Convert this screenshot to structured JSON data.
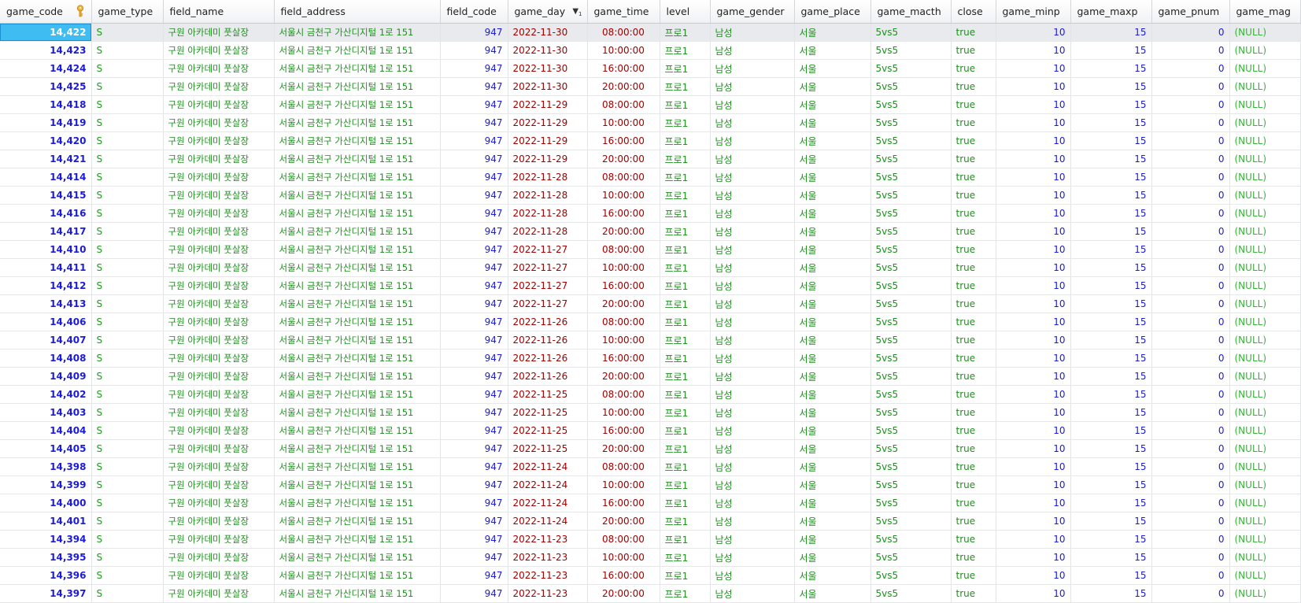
{
  "columns": [
    "game_code",
    "game_type",
    "field_name",
    "field_address",
    "field_code",
    "game_day",
    "game_time",
    "level",
    "game_gender",
    "game_place",
    "game_macth",
    "close",
    "game_minp",
    "game_maxp",
    "game_pnum",
    "game_mag"
  ],
  "sort_indicator": "1",
  "rows": [
    [
      "14,422",
      "S",
      "구원 아카데미 풋살장",
      "서울시 금천구 가산디지털 1로 151",
      "947",
      "2022-11-30",
      "08:00:00",
      "프로1",
      "남성",
      "서울",
      "5vs5",
      "true",
      "10",
      "15",
      "0",
      "(NULL)"
    ],
    [
      "14,423",
      "S",
      "구원 아카데미 풋살장",
      "서울시 금천구 가산디지털 1로 151",
      "947",
      "2022-11-30",
      "10:00:00",
      "프로1",
      "남성",
      "서울",
      "5vs5",
      "true",
      "10",
      "15",
      "0",
      "(NULL)"
    ],
    [
      "14,424",
      "S",
      "구원 아카데미 풋살장",
      "서울시 금천구 가산디지털 1로 151",
      "947",
      "2022-11-30",
      "16:00:00",
      "프로1",
      "남성",
      "서울",
      "5vs5",
      "true",
      "10",
      "15",
      "0",
      "(NULL)"
    ],
    [
      "14,425",
      "S",
      "구원 아카데미 풋살장",
      "서울시 금천구 가산디지털 1로 151",
      "947",
      "2022-11-30",
      "20:00:00",
      "프로1",
      "남성",
      "서울",
      "5vs5",
      "true",
      "10",
      "15",
      "0",
      "(NULL)"
    ],
    [
      "14,418",
      "S",
      "구원 아카데미 풋살장",
      "서울시 금천구 가산디지털 1로 151",
      "947",
      "2022-11-29",
      "08:00:00",
      "프로1",
      "남성",
      "서울",
      "5vs5",
      "true",
      "10",
      "15",
      "0",
      "(NULL)"
    ],
    [
      "14,419",
      "S",
      "구원 아카데미 풋살장",
      "서울시 금천구 가산디지털 1로 151",
      "947",
      "2022-11-29",
      "10:00:00",
      "프로1",
      "남성",
      "서울",
      "5vs5",
      "true",
      "10",
      "15",
      "0",
      "(NULL)"
    ],
    [
      "14,420",
      "S",
      "구원 아카데미 풋살장",
      "서울시 금천구 가산디지털 1로 151",
      "947",
      "2022-11-29",
      "16:00:00",
      "프로1",
      "남성",
      "서울",
      "5vs5",
      "true",
      "10",
      "15",
      "0",
      "(NULL)"
    ],
    [
      "14,421",
      "S",
      "구원 아카데미 풋살장",
      "서울시 금천구 가산디지털 1로 151",
      "947",
      "2022-11-29",
      "20:00:00",
      "프로1",
      "남성",
      "서울",
      "5vs5",
      "true",
      "10",
      "15",
      "0",
      "(NULL)"
    ],
    [
      "14,414",
      "S",
      "구원 아카데미 풋살장",
      "서울시 금천구 가산디지털 1로 151",
      "947",
      "2022-11-28",
      "08:00:00",
      "프로1",
      "남성",
      "서울",
      "5vs5",
      "true",
      "10",
      "15",
      "0",
      "(NULL)"
    ],
    [
      "14,415",
      "S",
      "구원 아카데미 풋살장",
      "서울시 금천구 가산디지털 1로 151",
      "947",
      "2022-11-28",
      "10:00:00",
      "프로1",
      "남성",
      "서울",
      "5vs5",
      "true",
      "10",
      "15",
      "0",
      "(NULL)"
    ],
    [
      "14,416",
      "S",
      "구원 아카데미 풋살장",
      "서울시 금천구 가산디지털 1로 151",
      "947",
      "2022-11-28",
      "16:00:00",
      "프로1",
      "남성",
      "서울",
      "5vs5",
      "true",
      "10",
      "15",
      "0",
      "(NULL)"
    ],
    [
      "14,417",
      "S",
      "구원 아카데미 풋살장",
      "서울시 금천구 가산디지털 1로 151",
      "947",
      "2022-11-28",
      "20:00:00",
      "프로1",
      "남성",
      "서울",
      "5vs5",
      "true",
      "10",
      "15",
      "0",
      "(NULL)"
    ],
    [
      "14,410",
      "S",
      "구원 아카데미 풋살장",
      "서울시 금천구 가산디지털 1로 151",
      "947",
      "2022-11-27",
      "08:00:00",
      "프로1",
      "남성",
      "서울",
      "5vs5",
      "true",
      "10",
      "15",
      "0",
      "(NULL)"
    ],
    [
      "14,411",
      "S",
      "구원 아카데미 풋살장",
      "서울시 금천구 가산디지털 1로 151",
      "947",
      "2022-11-27",
      "10:00:00",
      "프로1",
      "남성",
      "서울",
      "5vs5",
      "true",
      "10",
      "15",
      "0",
      "(NULL)"
    ],
    [
      "14,412",
      "S",
      "구원 아카데미 풋살장",
      "서울시 금천구 가산디지털 1로 151",
      "947",
      "2022-11-27",
      "16:00:00",
      "프로1",
      "남성",
      "서울",
      "5vs5",
      "true",
      "10",
      "15",
      "0",
      "(NULL)"
    ],
    [
      "14,413",
      "S",
      "구원 아카데미 풋살장",
      "서울시 금천구 가산디지털 1로 151",
      "947",
      "2022-11-27",
      "20:00:00",
      "프로1",
      "남성",
      "서울",
      "5vs5",
      "true",
      "10",
      "15",
      "0",
      "(NULL)"
    ],
    [
      "14,406",
      "S",
      "구원 아카데미 풋살장",
      "서울시 금천구 가산디지털 1로 151",
      "947",
      "2022-11-26",
      "08:00:00",
      "프로1",
      "남성",
      "서울",
      "5vs5",
      "true",
      "10",
      "15",
      "0",
      "(NULL)"
    ],
    [
      "14,407",
      "S",
      "구원 아카데미 풋살장",
      "서울시 금천구 가산디지털 1로 151",
      "947",
      "2022-11-26",
      "10:00:00",
      "프로1",
      "남성",
      "서울",
      "5vs5",
      "true",
      "10",
      "15",
      "0",
      "(NULL)"
    ],
    [
      "14,408",
      "S",
      "구원 아카데미 풋살장",
      "서울시 금천구 가산디지털 1로 151",
      "947",
      "2022-11-26",
      "16:00:00",
      "프로1",
      "남성",
      "서울",
      "5vs5",
      "true",
      "10",
      "15",
      "0",
      "(NULL)"
    ],
    [
      "14,409",
      "S",
      "구원 아카데미 풋살장",
      "서울시 금천구 가산디지털 1로 151",
      "947",
      "2022-11-26",
      "20:00:00",
      "프로1",
      "남성",
      "서울",
      "5vs5",
      "true",
      "10",
      "15",
      "0",
      "(NULL)"
    ],
    [
      "14,402",
      "S",
      "구원 아카데미 풋살장",
      "서울시 금천구 가산디지털 1로 151",
      "947",
      "2022-11-25",
      "08:00:00",
      "프로1",
      "남성",
      "서울",
      "5vs5",
      "true",
      "10",
      "15",
      "0",
      "(NULL)"
    ],
    [
      "14,403",
      "S",
      "구원 아카데미 풋살장",
      "서울시 금천구 가산디지털 1로 151",
      "947",
      "2022-11-25",
      "10:00:00",
      "프로1",
      "남성",
      "서울",
      "5vs5",
      "true",
      "10",
      "15",
      "0",
      "(NULL)"
    ],
    [
      "14,404",
      "S",
      "구원 아카데미 풋살장",
      "서울시 금천구 가산디지털 1로 151",
      "947",
      "2022-11-25",
      "16:00:00",
      "프로1",
      "남성",
      "서울",
      "5vs5",
      "true",
      "10",
      "15",
      "0",
      "(NULL)"
    ],
    [
      "14,405",
      "S",
      "구원 아카데미 풋살장",
      "서울시 금천구 가산디지털 1로 151",
      "947",
      "2022-11-25",
      "20:00:00",
      "프로1",
      "남성",
      "서울",
      "5vs5",
      "true",
      "10",
      "15",
      "0",
      "(NULL)"
    ],
    [
      "14,398",
      "S",
      "구원 아카데미 풋살장",
      "서울시 금천구 가산디지털 1로 151",
      "947",
      "2022-11-24",
      "08:00:00",
      "프로1",
      "남성",
      "서울",
      "5vs5",
      "true",
      "10",
      "15",
      "0",
      "(NULL)"
    ],
    [
      "14,399",
      "S",
      "구원 아카데미 풋살장",
      "서울시 금천구 가산디지털 1로 151",
      "947",
      "2022-11-24",
      "10:00:00",
      "프로1",
      "남성",
      "서울",
      "5vs5",
      "true",
      "10",
      "15",
      "0",
      "(NULL)"
    ],
    [
      "14,400",
      "S",
      "구원 아카데미 풋살장",
      "서울시 금천구 가산디지털 1로 151",
      "947",
      "2022-11-24",
      "16:00:00",
      "프로1",
      "남성",
      "서울",
      "5vs5",
      "true",
      "10",
      "15",
      "0",
      "(NULL)"
    ],
    [
      "14,401",
      "S",
      "구원 아카데미 풋살장",
      "서울시 금천구 가산디지털 1로 151",
      "947",
      "2022-11-24",
      "20:00:00",
      "프로1",
      "남성",
      "서울",
      "5vs5",
      "true",
      "10",
      "15",
      "0",
      "(NULL)"
    ],
    [
      "14,394",
      "S",
      "구원 아카데미 풋살장",
      "서울시 금천구 가산디지털 1로 151",
      "947",
      "2022-11-23",
      "08:00:00",
      "프로1",
      "남성",
      "서울",
      "5vs5",
      "true",
      "10",
      "15",
      "0",
      "(NULL)"
    ],
    [
      "14,395",
      "S",
      "구원 아카데미 풋살장",
      "서울시 금천구 가산디지털 1로 151",
      "947",
      "2022-11-23",
      "10:00:00",
      "프로1",
      "남성",
      "서울",
      "5vs5",
      "true",
      "10",
      "15",
      "0",
      "(NULL)"
    ],
    [
      "14,396",
      "S",
      "구원 아카데미 풋살장",
      "서울시 금천구 가산디지털 1로 151",
      "947",
      "2022-11-23",
      "16:00:00",
      "프로1",
      "남성",
      "서울",
      "5vs5",
      "true",
      "10",
      "15",
      "0",
      "(NULL)"
    ],
    [
      "14,397",
      "S",
      "구원 아카데미 풋살장",
      "서울시 금천구 가산디지털 1로 151",
      "947",
      "2022-11-23",
      "20:00:00",
      "프로1",
      "남성",
      "서울",
      "5vs5",
      "true",
      "10",
      "15",
      "0",
      "(NULL)"
    ]
  ]
}
